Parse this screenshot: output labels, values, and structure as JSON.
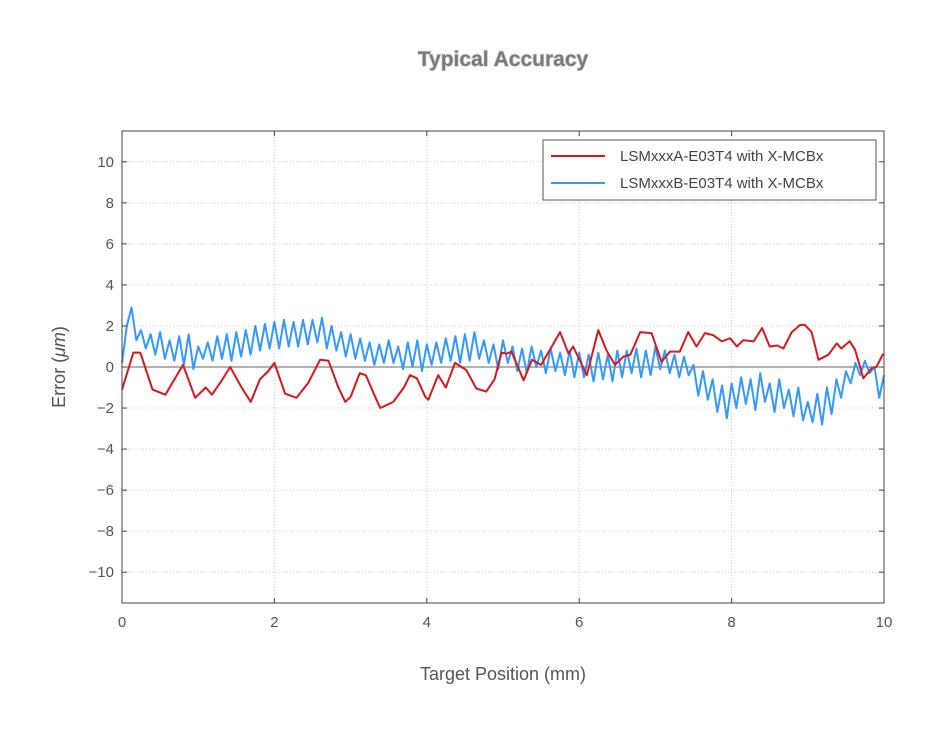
{
  "chart_data": {
    "type": "line",
    "title": "Typical Accuracy",
    "xlabel": "Target Position (mm)",
    "ylabel_prefix": "Error (",
    "ylabel_unit": "μm",
    "ylabel_suffix": ")",
    "xlim": [
      0,
      10
    ],
    "ylim": [
      -11.5,
      11.5
    ],
    "xticks": [
      0,
      2,
      4,
      6,
      8,
      10
    ],
    "yticks": [
      -10,
      -8,
      -6,
      -4,
      -2,
      0,
      2,
      4,
      6,
      8,
      10
    ],
    "ytick_labels": [
      "−10",
      "−8",
      "−6",
      "−4",
      "−2",
      "0",
      "2",
      "4",
      "6",
      "8",
      "10"
    ],
    "grid": true,
    "legend_position": "top-right",
    "series": [
      {
        "name": "LSMxxxA-E03T4 with X-MCBx",
        "color": "#d7191c",
        "x": [
          0,
          0.15,
          0.24,
          0.4,
          0.57,
          0.8,
          0.96,
          1.1,
          1.18,
          1.3,
          1.42,
          1.57,
          1.69,
          1.81,
          1.92,
          2.0,
          2.14,
          2.29,
          2.44,
          2.6,
          2.71,
          2.84,
          2.93,
          3.0,
          3.12,
          3.2,
          3.34,
          3.39,
          3.56,
          3.7,
          3.78,
          3.87,
          3.98,
          4.02,
          4.15,
          4.25,
          4.37,
          4.52,
          4.65,
          4.78,
          4.89,
          4.98,
          5.05,
          5.11,
          5.27,
          5.38,
          5.5,
          5.64,
          5.75,
          5.86,
          5.92,
          6.05,
          6.1,
          6.25,
          6.36,
          6.47,
          6.58,
          6.67,
          6.8,
          6.95,
          7.08,
          7.19,
          7.32,
          7.43,
          7.54,
          7.65,
          7.76,
          7.87,
          7.98,
          8.07,
          8.15,
          8.29,
          8.4,
          8.5,
          8.6,
          8.68,
          8.79,
          8.9,
          8.96,
          9.05,
          9.14,
          9.27,
          9.38,
          9.44,
          9.55,
          9.62,
          9.73,
          9.84,
          9.9,
          9.99
        ],
        "y": [
          -1.1,
          0.7,
          0.7,
          -1.1,
          -1.35,
          0.1,
          -1.5,
          -1.0,
          -1.35,
          -0.7,
          0.0,
          -1.0,
          -1.7,
          -0.6,
          -0.2,
          0.2,
          -1.3,
          -1.5,
          -0.8,
          0.35,
          0.3,
          -1.0,
          -1.7,
          -1.45,
          -0.3,
          -0.4,
          -1.6,
          -2.0,
          -1.7,
          -1.0,
          -0.4,
          -0.55,
          -1.45,
          -1.6,
          -0.4,
          -1.0,
          0.2,
          -0.15,
          -1.05,
          -1.2,
          -0.6,
          0.7,
          0.65,
          0.75,
          -0.65,
          0.35,
          0.1,
          1.0,
          1.7,
          0.65,
          1.0,
          0.0,
          -0.4,
          1.8,
          0.8,
          0.1,
          0.5,
          0.6,
          1.7,
          1.65,
          0.25,
          0.75,
          0.75,
          1.7,
          1.0,
          1.65,
          1.55,
          1.25,
          1.4,
          1.0,
          1.3,
          1.25,
          1.9,
          1.0,
          1.05,
          0.9,
          1.7,
          2.05,
          2.05,
          1.7,
          0.35,
          0.6,
          1.15,
          0.9,
          1.25,
          0.85,
          -0.55,
          -0.05,
          0.0,
          0.65
        ]
      },
      {
        "name": "LSMxxxB-E03T4 with X-MCBx",
        "color": "#3399ff",
        "x": [
          0,
          0.0625,
          0.125,
          0.1875,
          0.25,
          0.3125,
          0.375,
          0.4375,
          0.5,
          0.5625,
          0.625,
          0.6875,
          0.75,
          0.8125,
          0.875,
          0.9375,
          1,
          1.0625,
          1.125,
          1.1875,
          1.25,
          1.3125,
          1.375,
          1.4375,
          1.5,
          1.5625,
          1.625,
          1.6875,
          1.75,
          1.8125,
          1.875,
          1.9375,
          2,
          2.0625,
          2.125,
          2.1875,
          2.25,
          2.3125,
          2.375,
          2.4375,
          2.5,
          2.5625,
          2.625,
          2.6875,
          2.75,
          2.8125,
          2.875,
          2.9375,
          3,
          3.0625,
          3.125,
          3.1875,
          3.25,
          3.3125,
          3.375,
          3.4375,
          3.5,
          3.5625,
          3.625,
          3.6875,
          3.75,
          3.8125,
          3.875,
          3.9375,
          4,
          4.0625,
          4.125,
          4.1875,
          4.25,
          4.3125,
          4.375,
          4.4375,
          4.5,
          4.5625,
          4.625,
          4.6875,
          4.75,
          4.8125,
          4.875,
          4.9375,
          5,
          5.0625,
          5.125,
          5.1875,
          5.25,
          5.3125,
          5.375,
          5.4375,
          5.5,
          5.5625,
          5.625,
          5.6875,
          5.75,
          5.8125,
          5.875,
          5.9375,
          6,
          6.0625,
          6.125,
          6.1875,
          6.25,
          6.3125,
          6.375,
          6.4375,
          6.5,
          6.5625,
          6.625,
          6.6875,
          6.75,
          6.8125,
          6.875,
          6.9375,
          7,
          7.0625,
          7.125,
          7.1875,
          7.25,
          7.3125,
          7.375,
          7.4375,
          7.5,
          7.5625,
          7.625,
          7.6875,
          7.75,
          7.8125,
          7.875,
          7.9375,
          8,
          8.0625,
          8.125,
          8.1875,
          8.25,
          8.3125,
          8.375,
          8.4375,
          8.5,
          8.5625,
          8.625,
          8.6875,
          8.75,
          8.8125,
          8.875,
          8.9375,
          9,
          9.0625,
          9.125,
          9.1875,
          9.25,
          9.3125,
          9.375,
          9.4375,
          9.5,
          9.5625,
          9.625,
          9.6875,
          9.75,
          9.8125,
          9.875,
          9.9375,
          10
        ],
        "y": [
          0.2,
          2.0,
          2.9,
          1.3,
          1.8,
          0.9,
          1.6,
          0.6,
          1.7,
          0.4,
          1.3,
          0.3,
          1.5,
          0.1,
          1.6,
          -0.1,
          1.0,
          0.4,
          1.2,
          0.3,
          1.5,
          0.4,
          1.6,
          0.3,
          1.7,
          0.5,
          1.8,
          0.6,
          2.0,
          0.8,
          2.1,
          0.9,
          2.2,
          0.9,
          2.3,
          1.0,
          2.2,
          1.0,
          2.3,
          1.1,
          2.3,
          1.2,
          2.4,
          0.9,
          2.0,
          0.8,
          1.7,
          0.5,
          1.6,
          0.4,
          1.4,
          0.3,
          1.2,
          0.1,
          1.1,
          0.2,
          1.3,
          0.2,
          1.0,
          -0.1,
          1.2,
          0.0,
          1.3,
          -0.2,
          1.1,
          0.1,
          1.2,
          0.2,
          1.4,
          0.3,
          1.5,
          0.2,
          1.6,
          0.3,
          1.7,
          0.4,
          1.3,
          0.2,
          1.1,
          -0.1,
          1.3,
          0.2,
          1.0,
          -0.2,
          0.9,
          -0.3,
          1.0,
          0.0,
          0.8,
          -0.3,
          0.9,
          -0.2,
          0.7,
          -0.4,
          0.8,
          -0.5,
          0.7,
          -0.5,
          0.6,
          -0.7,
          0.7,
          -0.6,
          0.6,
          -0.7,
          0.8,
          -0.5,
          0.8,
          -0.3,
          0.9,
          -0.5,
          0.8,
          -0.4,
          1.0,
          -0.1,
          0.8,
          -0.3,
          0.6,
          -0.5,
          0.5,
          -0.4,
          0.1,
          -1.4,
          -0.2,
          -1.6,
          -0.6,
          -2.2,
          -0.9,
          -2.5,
          -0.8,
          -2.0,
          -0.5,
          -1.8,
          -0.6,
          -2.1,
          -0.3,
          -1.7,
          -0.8,
          -2.2,
          -0.6,
          -2.0,
          -1.1,
          -2.4,
          -1.0,
          -2.6,
          -1.7,
          -2.7,
          -1.3,
          -2.8,
          -1.0,
          -2.3,
          -0.6,
          -1.5,
          -0.2,
          -0.8,
          0.2,
          -0.4,
          0.3,
          -0.3,
          0.0,
          -1.5,
          -0.4
        ]
      }
    ]
  }
}
